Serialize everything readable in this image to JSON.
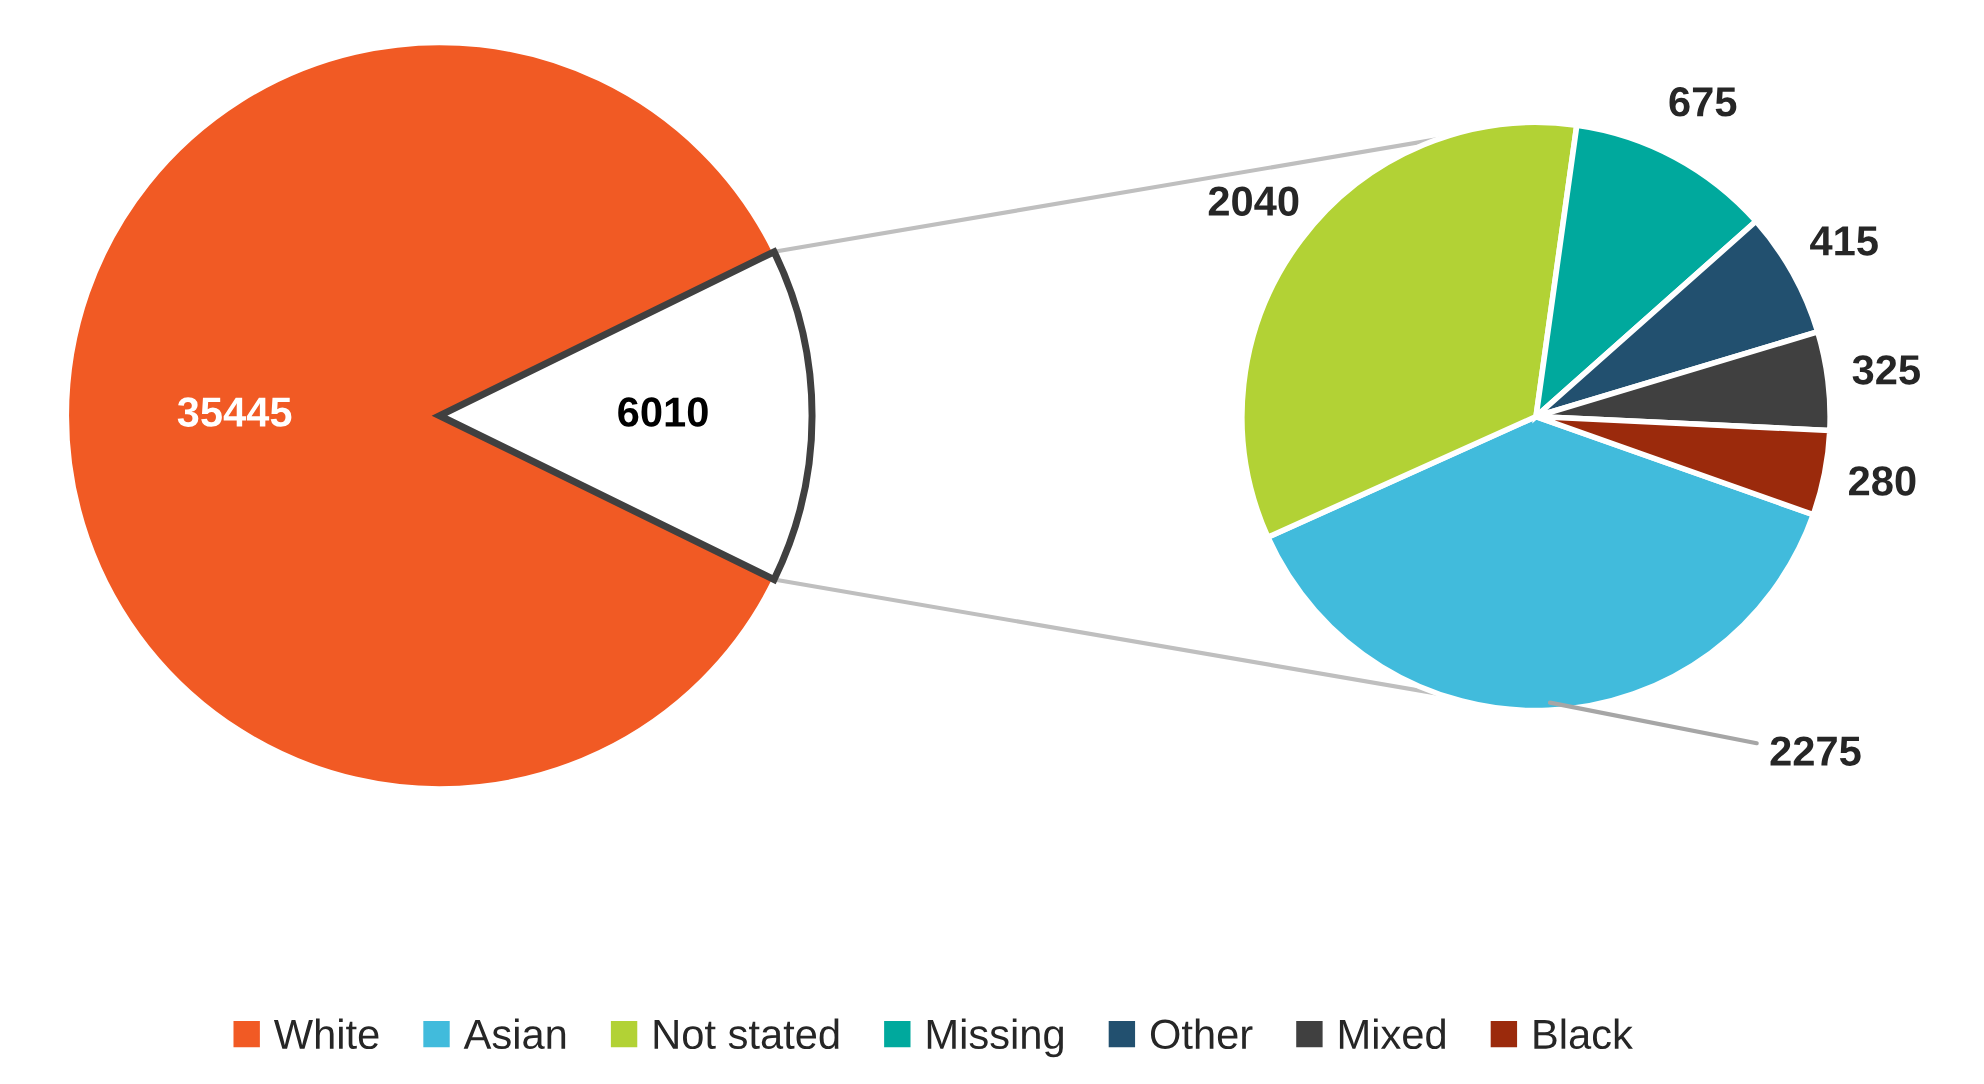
{
  "chart_data": [
    {
      "type": "pie",
      "categories": [
        "White",
        null
      ],
      "values": [
        35445,
        6010
      ],
      "colors": [
        "#f15a24",
        "#ffffff"
      ],
      "data_labels": true,
      "legend": "bottom"
    },
    {
      "type": "pie",
      "categories": [
        "Asian",
        "Not stated",
        "Missing",
        "Other",
        "Mixed",
        "Black"
      ],
      "values": [
        2275,
        2040,
        675,
        415,
        325,
        280
      ],
      "colors": [
        "#41bbdc",
        "#b2d235",
        "#00a99d",
        "#22506f",
        "#404040",
        "#9b2a0c"
      ],
      "data_labels": true,
      "legend": "bottom"
    }
  ]
}
